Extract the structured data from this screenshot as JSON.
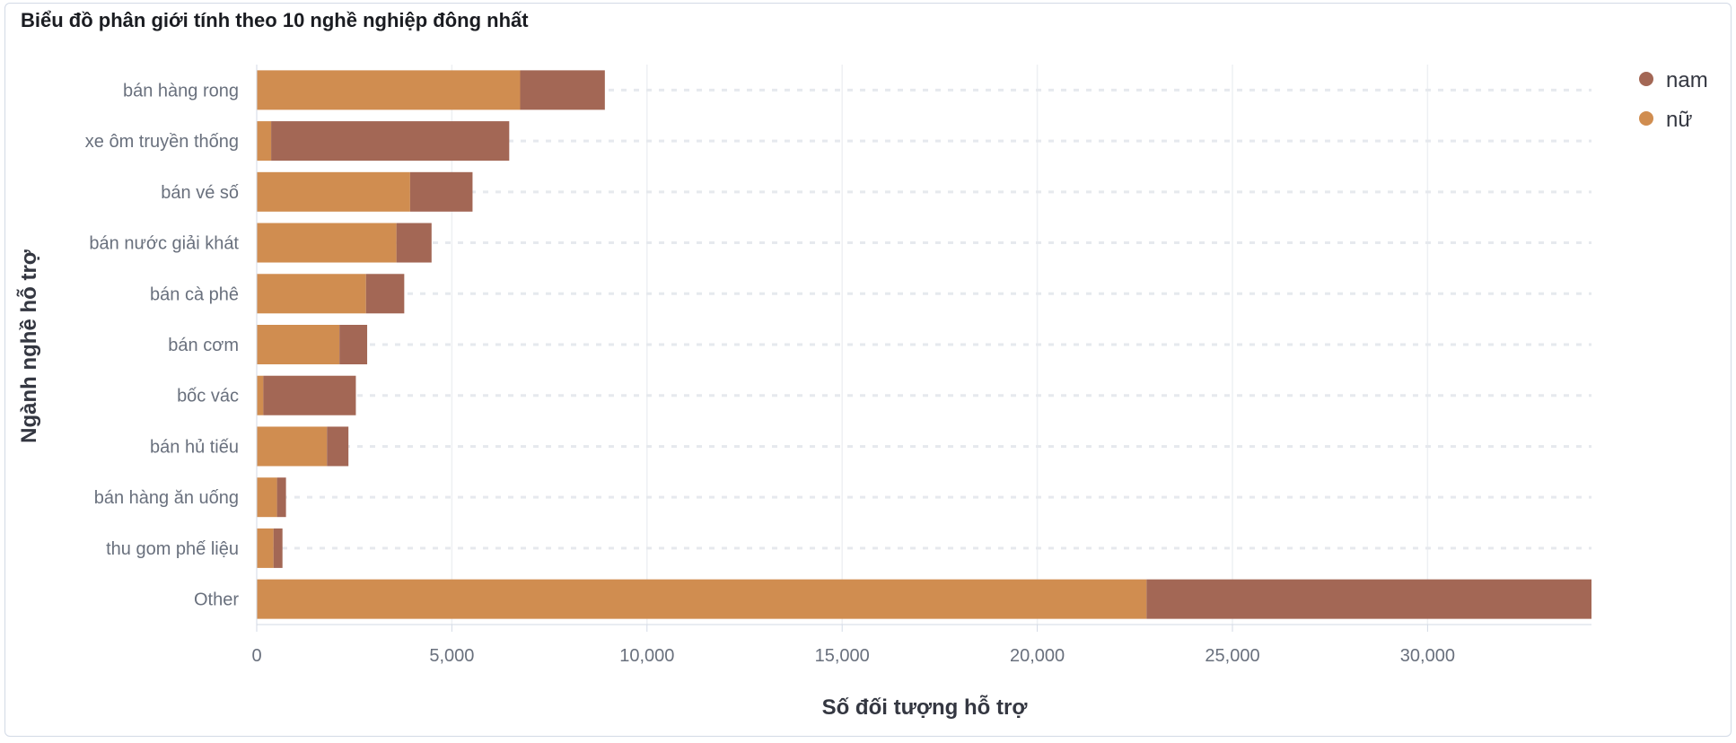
{
  "panel": {
    "title": "Biểu đồ phân giới tính theo 10 nghề nghiệp đông nhất"
  },
  "chart_data": {
    "type": "bar",
    "orientation": "horizontal",
    "stacked": true,
    "title": "Biểu đồ phân giới tính theo 10 nghề nghiệp đông nhất",
    "xlabel": "Số đối tượng hỗ trợ",
    "ylabel": "Ngành nghề hỗ trợ",
    "xlim": [
      0,
      34200
    ],
    "xticks": [
      0,
      5000,
      10000,
      15000,
      20000,
      25000,
      30000
    ],
    "xtick_labels": [
      "0",
      "5,000",
      "10,000",
      "15,000",
      "20,000",
      "25,000",
      "30,000"
    ],
    "grid": true,
    "legend_position": "top-right",
    "categories": [
      "bán hàng rong",
      "xe ôm truyền thống",
      "bán vé số",
      "bán nước giải khát",
      "bán cà phê",
      "bán cơm",
      "bốc vác",
      "bán hủ tiếu",
      "bán hàng ăn uống",
      "thu gom phế liệu",
      "Other"
    ],
    "series": [
      {
        "name": "nữ",
        "color": "#d08d50",
        "values": [
          6750,
          370,
          3930,
          3580,
          2800,
          2120,
          170,
          1800,
          520,
          430,
          22800
        ]
      },
      {
        "name": "nam",
        "color": "#a36755",
        "values": [
          2170,
          6100,
          1600,
          900,
          980,
          710,
          2370,
          550,
          230,
          230,
          11400
        ]
      }
    ],
    "legend_order": [
      "nam",
      "nữ"
    ]
  }
}
